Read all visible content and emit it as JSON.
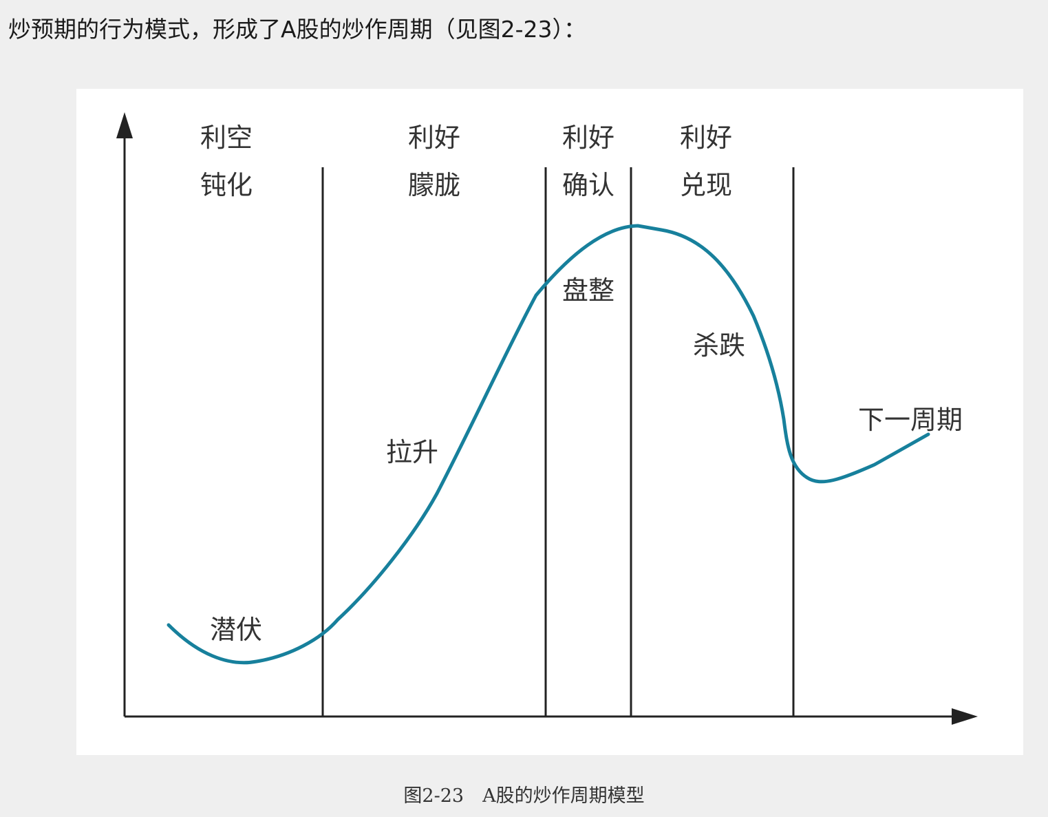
{
  "intro_text": "炒预期的行为模式，形成了A股的炒作周期（见图2-23）：",
  "figure": {
    "curve_color": "#17809c",
    "top_labels": [
      {
        "line1": "利空",
        "line2": "钝化"
      },
      {
        "line1": "利好",
        "line2": "朦胧"
      },
      {
        "line1": "利好",
        "line2": "确认"
      },
      {
        "line1": "利好",
        "line2": "兑现"
      }
    ],
    "stage_labels": {
      "lurk": "潜伏",
      "rise": "拉升",
      "consolidate": "盘整",
      "plunge": "杀跌",
      "next_cycle": "下一周期"
    }
  },
  "caption": "图2-23　A股的炒作周期模型"
}
